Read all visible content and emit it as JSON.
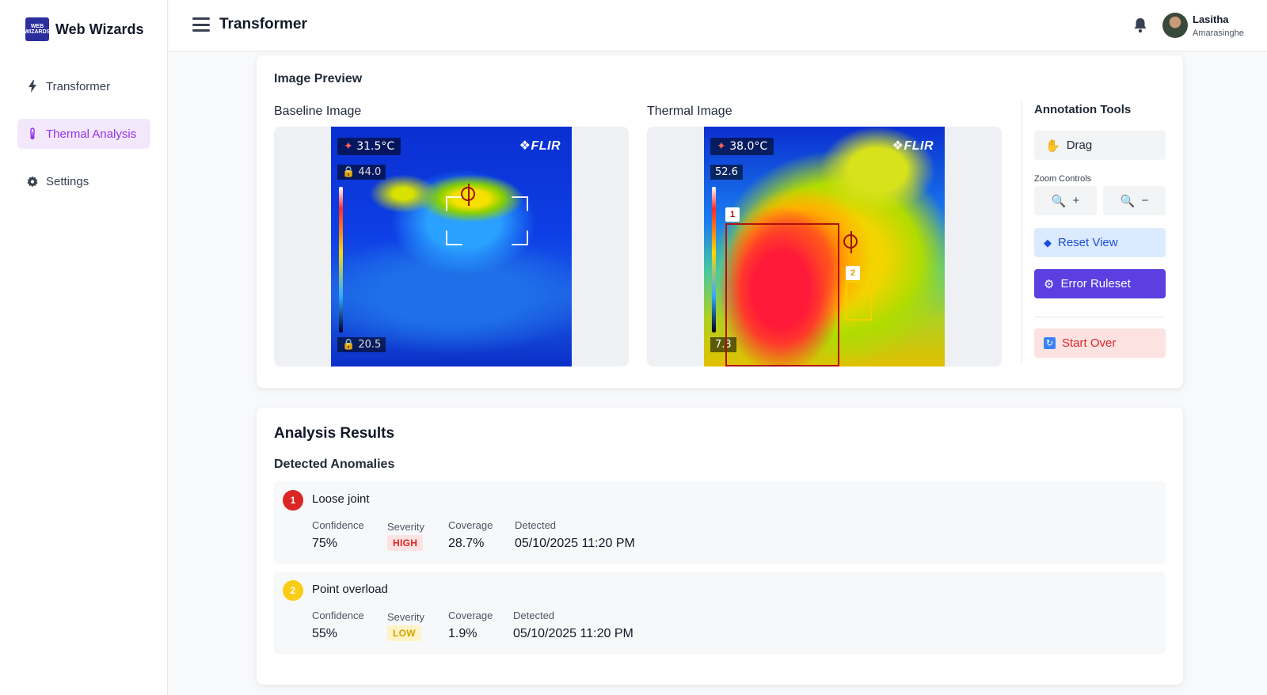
{
  "brand": {
    "name": "Web Wizards",
    "logo_text": "WEB WIZARDS"
  },
  "sidebar": {
    "items": [
      {
        "label": "Transformer",
        "icon": "bolt-icon"
      },
      {
        "label": "Thermal Analysis",
        "icon": "thermometer-icon",
        "active": true
      },
      {
        "label": "Settings",
        "icon": "gear-icon"
      }
    ]
  },
  "header": {
    "title": "Transformer"
  },
  "user": {
    "first_name": "Lasitha",
    "last_name": "Amarasinghe"
  },
  "preview": {
    "title": "Image Preview",
    "baseline": {
      "label": "Baseline Image",
      "temp": "31.5°C",
      "max": "44.0",
      "min": "20.5",
      "brand": "FLIR"
    },
    "thermal": {
      "label": "Thermal Image",
      "temp": "38.0°C",
      "max": "52.6",
      "min": "7.3",
      "brand": "FLIR",
      "box1": "1",
      "box2": "2"
    }
  },
  "tools": {
    "title": "Annotation Tools",
    "drag": "Drag",
    "zoom_label": "Zoom Controls",
    "zoom_in": "+",
    "zoom_out": "−",
    "reset": "Reset View",
    "ruleset": "Error Ruleset",
    "start_over": "Start Over"
  },
  "results": {
    "title": "Analysis Results",
    "subtitle": "Detected Anomalies",
    "labels": {
      "confidence": "Confidence",
      "severity": "Severity",
      "coverage": "Coverage",
      "detected": "Detected"
    },
    "anomalies": [
      {
        "num": "1",
        "name": "Loose joint",
        "confidence": "75%",
        "severity": "HIGH",
        "coverage": "28.7%",
        "detected": "05/10/2025 11:20 PM",
        "color": "#dc2626"
      },
      {
        "num": "2",
        "name": "Point overload",
        "confidence": "55%",
        "severity": "LOW",
        "coverage": "1.9%",
        "detected": "05/10/2025 11:20 PM",
        "color": "#facc15"
      }
    ]
  },
  "colors": {
    "accent": "#9333ea",
    "primary": "#5b3fe0",
    "danger": "#dc2626",
    "warning": "#facc15"
  }
}
